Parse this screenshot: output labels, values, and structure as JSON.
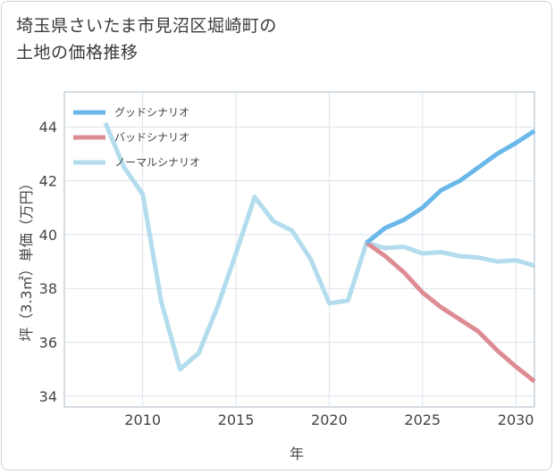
{
  "title_lines": [
    "埼玉県さいたま市見沼区堀崎町の",
    "土地の価格推移"
  ],
  "chart_data": {
    "type": "line",
    "xlabel": "年",
    "ylabel": "坪（3.3㎡）単価（万円）",
    "xlim": [
      2005.8,
      2031
    ],
    "ylim": [
      33.6,
      45.3
    ],
    "grid": true,
    "xticks": [
      2010,
      2015,
      2020,
      2025,
      2030
    ],
    "yticks": [
      34,
      36,
      38,
      40,
      42,
      44
    ],
    "legend_position": "top-left",
    "series": [
      {
        "name": "グッドシナリオ",
        "color": "#6ab8ea",
        "x": [
          2022,
          2023,
          2024,
          2025,
          2026,
          2027,
          2028,
          2029,
          2030,
          2031
        ],
        "values": [
          39.7,
          40.25,
          40.55,
          41.0,
          41.65,
          42.0,
          42.5,
          43.0,
          43.4,
          43.85
        ]
      },
      {
        "name": "バッドシナリオ",
        "color": "#dd8c94",
        "x": [
          2022,
          2023,
          2024,
          2025,
          2026,
          2027,
          2028,
          2029,
          2030,
          2031
        ],
        "values": [
          39.7,
          39.2,
          38.6,
          37.85,
          37.3,
          36.85,
          36.4,
          35.7,
          35.1,
          34.55
        ]
      },
      {
        "name": "ノーマルシナリオ",
        "color": "#b3dced",
        "x": [
          2008,
          2009,
          2010,
          2011,
          2012,
          2013,
          2014,
          2015,
          2016,
          2017,
          2018,
          2019,
          2020,
          2021,
          2022,
          2023,
          2024,
          2025,
          2026,
          2027,
          2028,
          2029,
          2030,
          2031
        ],
        "values": [
          44.15,
          42.5,
          41.5,
          37.5,
          35.0,
          35.6,
          37.3,
          39.3,
          41.4,
          40.5,
          40.15,
          39.1,
          37.45,
          37.55,
          39.7,
          39.5,
          39.55,
          39.3,
          39.35,
          39.2,
          39.15,
          39.0,
          39.05,
          38.85
        ]
      }
    ]
  }
}
